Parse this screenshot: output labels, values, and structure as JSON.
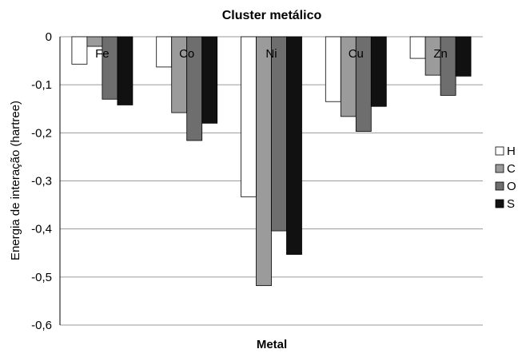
{
  "chart_data": {
    "type": "bar",
    "title": "Cluster metálico",
    "xlabel": "Metal",
    "ylabel": "Energia de interação (hartree)",
    "categories": [
      "Fe",
      "Co",
      "Ni",
      "Cu",
      "Zn"
    ],
    "series": [
      {
        "name": "H",
        "color": "#ffffff",
        "values": [
          -0.057,
          -0.063,
          -0.333,
          -0.135,
          -0.045
        ]
      },
      {
        "name": "C",
        "color": "#9b9b9b",
        "values": [
          -0.02,
          -0.158,
          -0.518,
          -0.166,
          -0.08
        ]
      },
      {
        "name": "O",
        "color": "#6e6e6e",
        "values": [
          -0.13,
          -0.216,
          -0.404,
          -0.197,
          -0.122
        ]
      },
      {
        "name": "S",
        "color": "#111111",
        "values": [
          -0.142,
          -0.18,
          -0.453,
          -0.145,
          -0.082
        ]
      }
    ],
    "ylim": [
      -0.6,
      0
    ],
    "yticks": [
      "0",
      "-0,1",
      "-0,2",
      "-0,3",
      "-0,4",
      "-0,5",
      "-0,6"
    ],
    "grid": true,
    "legend_position": "right"
  }
}
